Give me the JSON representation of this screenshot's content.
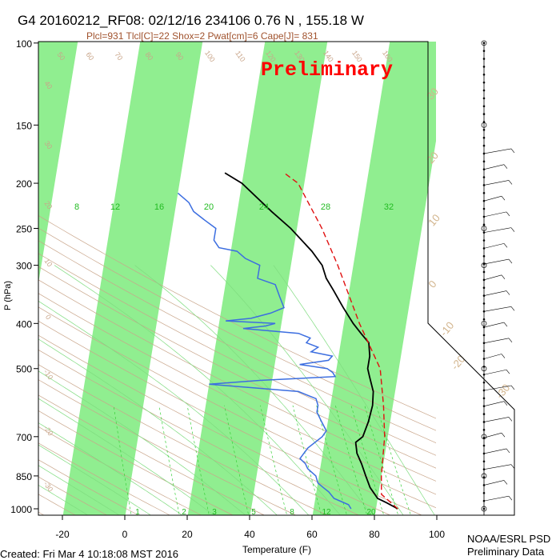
{
  "header": {
    "title": "G4 20160212_RF08: 02/12/16 234106    0.76 N , 155.18 W",
    "subtitle": "Plcl=931 Tlcl[C]=22 Shox=2 Pwat[cm]=6 Cape[J]= 831",
    "watermark": "Preliminary"
  },
  "footer": {
    "created": "Created: Fri Mar  4 10:18:08 MST 2016",
    "credit_line1": "NOAA/ESRL PSD",
    "credit_line2": "Preliminary Data"
  },
  "colors": {
    "band": "#90ee90",
    "background": "#ffffff",
    "frame": "#000000",
    "dry_adiabat": "#c9a58a",
    "moist_adiabat": "#7fdc7f",
    "mixing_ratio": "#3ad13a",
    "temperature": "#000000",
    "dewpoint": "#3c6ee0",
    "parcel": "#e01010",
    "title_sub": "#a0522d",
    "watermark": "#ff0000"
  },
  "chart_data": {
    "type": "line",
    "diagram": "skew-T log-P",
    "xlabel": "Temperature (F)",
    "ylabel": "P (hPa)",
    "x_ticks": [
      -20,
      0,
      20,
      40,
      60,
      80,
      100
    ],
    "y_ticks": [
      100,
      150,
      200,
      250,
      300,
      400,
      500,
      700,
      850,
      1000
    ],
    "xlim": [
      -35,
      115
    ],
    "ylim": [
      1050,
      100
    ],
    "y_scale": "log",
    "mixing_ratio_labels_top": [
      "8",
      "12",
      "16",
      "20",
      "24",
      "28",
      "32"
    ],
    "mixing_ratio_labels_bottom": [
      "1",
      "2",
      "3",
      "5",
      "8",
      "12",
      "20"
    ],
    "dry_adiabat_labels": [
      "50",
      "60",
      "70",
      "80",
      "90",
      "100",
      "110",
      "120",
      "130",
      "140",
      "150",
      "160"
    ],
    "dry_adiabat_left_labels": [
      "40",
      "30",
      "20",
      "10",
      "0",
      "-10",
      "-20",
      "-30"
    ],
    "isotherm_right_labels": [
      "30",
      "20",
      "10",
      "0",
      "-10",
      "-20",
      "-30"
    ],
    "series": [
      {
        "role": "temperature",
        "values": [
          [
            1000,
            87
          ],
          [
            970,
            83
          ],
          [
            950,
            80
          ],
          [
            900,
            77
          ],
          [
            850,
            75
          ],
          [
            800,
            73
          ],
          [
            760,
            71
          ],
          [
            720,
            70
          ],
          [
            700,
            72
          ],
          [
            650,
            73
          ],
          [
            600,
            73.5
          ],
          [
            560,
            73
          ],
          [
            520,
            71
          ],
          [
            500,
            70
          ],
          [
            470,
            70
          ],
          [
            440,
            69
          ],
          [
            420,
            66
          ],
          [
            400,
            63
          ],
          [
            370,
            59
          ],
          [
            340,
            55
          ],
          [
            320,
            52
          ],
          [
            300,
            50
          ],
          [
            280,
            46
          ],
          [
            250,
            38
          ],
          [
            230,
            31
          ],
          [
            200,
            20
          ],
          [
            190,
            14
          ]
        ]
      },
      {
        "role": "dewpoint",
        "values": [
          [
            1000,
            72
          ],
          [
            980,
            71
          ],
          [
            950,
            66
          ],
          [
            920,
            64
          ],
          [
            900,
            62
          ],
          [
            880,
            60
          ],
          [
            850,
            59
          ],
          [
            820,
            56
          ],
          [
            800,
            55
          ],
          [
            780,
            53
          ],
          [
            760,
            54
          ],
          [
            740,
            55
          ],
          [
            700,
            59
          ],
          [
            680,
            60
          ],
          [
            650,
            58
          ],
          [
            620,
            56
          ],
          [
            600,
            56
          ],
          [
            580,
            55
          ],
          [
            560,
            49
          ],
          [
            540,
            20
          ],
          [
            530,
            36
          ],
          [
            520,
            60
          ],
          [
            510,
            59
          ],
          [
            500,
            57
          ],
          [
            490,
            48
          ],
          [
            480,
            57
          ],
          [
            470,
            58
          ],
          [
            460,
            51
          ],
          [
            450,
            53
          ],
          [
            440,
            49
          ],
          [
            430,
            50
          ],
          [
            420,
            46
          ],
          [
            410,
            28
          ],
          [
            405,
            35
          ],
          [
            400,
            38
          ],
          [
            395,
            22
          ],
          [
            390,
            30
          ],
          [
            380,
            36
          ],
          [
            370,
            40
          ],
          [
            350,
            38
          ],
          [
            330,
            36
          ],
          [
            320,
            30
          ],
          [
            300,
            30
          ],
          [
            290,
            25
          ],
          [
            280,
            22
          ],
          [
            275,
            16
          ],
          [
            265,
            14
          ],
          [
            250,
            14
          ],
          [
            240,
            10
          ],
          [
            230,
            6
          ],
          [
            220,
            4
          ],
          [
            210,
            0
          ]
        ]
      },
      {
        "role": "parcel",
        "values": [
          [
            1000,
            87
          ],
          [
            931,
            81
          ],
          [
            850,
            80
          ],
          [
            700,
            79
          ],
          [
            600,
            77
          ],
          [
            500,
            74
          ],
          [
            400,
            65
          ],
          [
            300,
            55
          ],
          [
            250,
            48
          ],
          [
            200,
            38
          ],
          [
            190,
            33
          ]
        ]
      }
    ]
  },
  "wind_profile": {
    "levels": [
      1000,
      950,
      900,
      850,
      800,
      750,
      700,
      650,
      600,
      550,
      500,
      450,
      400,
      350,
      300,
      250,
      200,
      150,
      100
    ]
  }
}
